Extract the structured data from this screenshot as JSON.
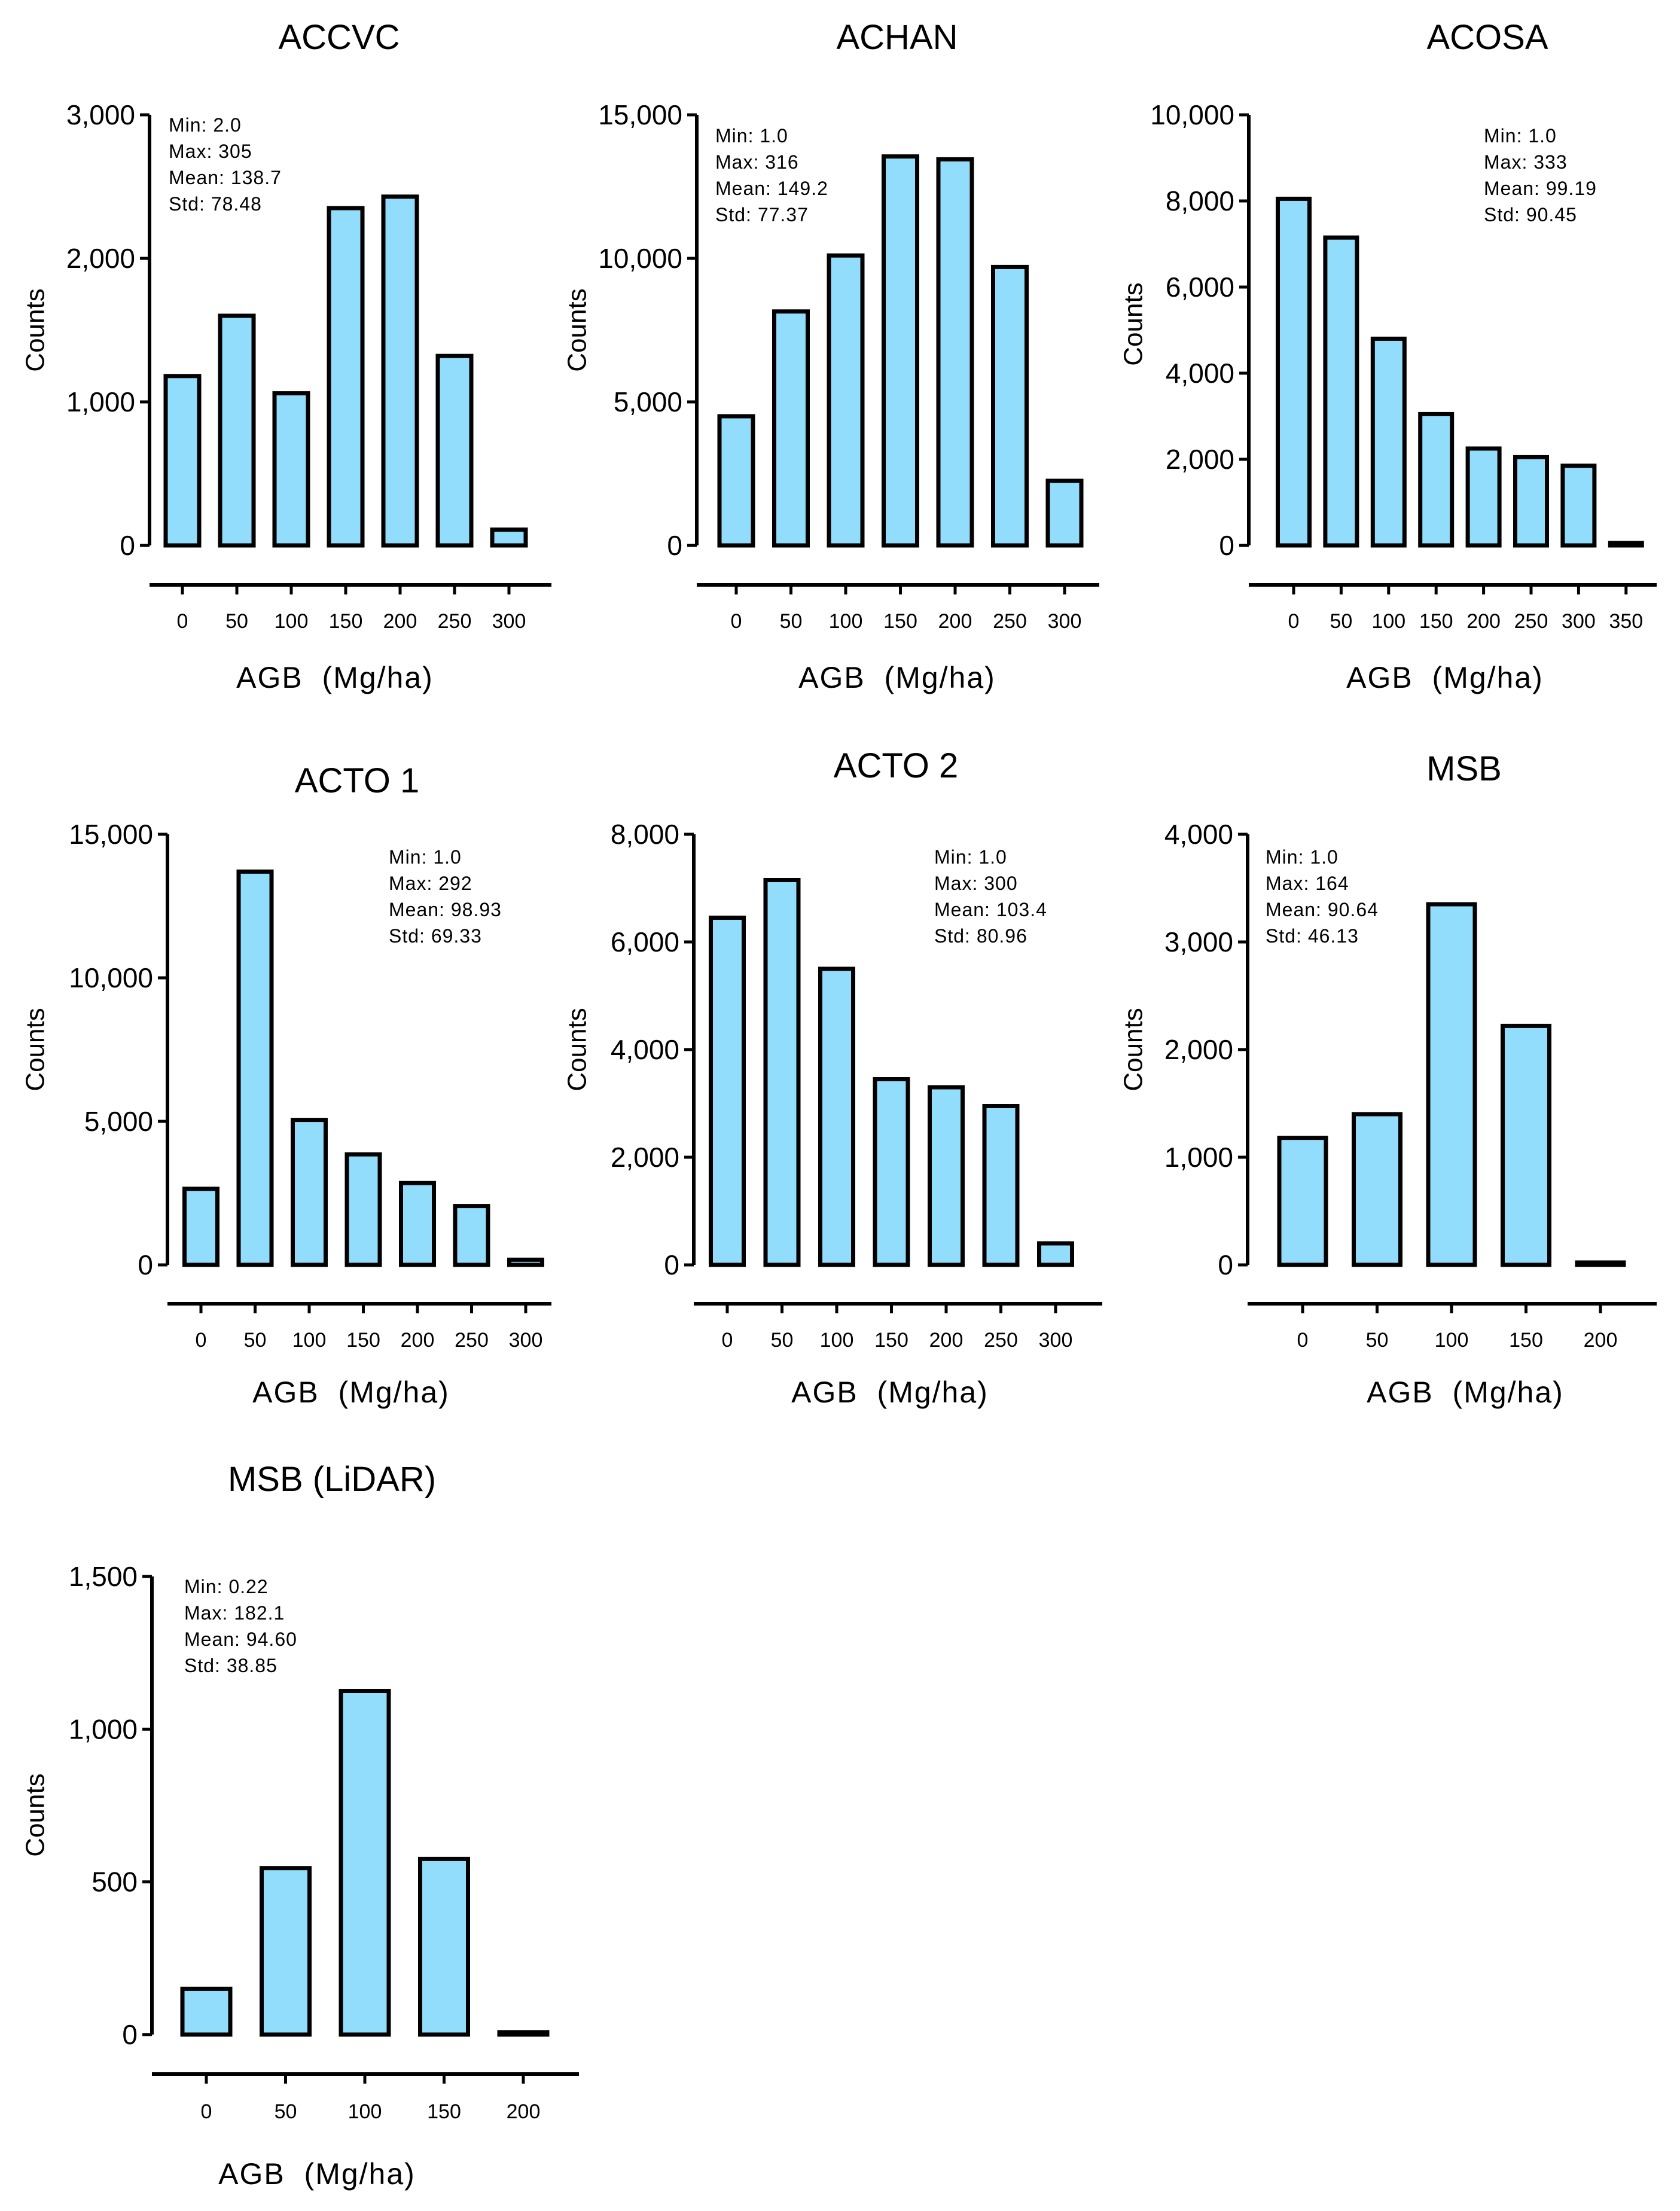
{
  "chart_data": [
    {
      "type": "bar",
      "title": "ACCVC",
      "xlabel": "AGB  (Mg/ha)",
      "ylabel": "Counts",
      "categories": [
        "0",
        "50",
        "100",
        "150",
        "200",
        "250",
        "300"
      ],
      "values": [
        1180,
        1600,
        1060,
        2350,
        2430,
        1320,
        110
      ],
      "ylim": [
        0,
        3000
      ],
      "yticks": [
        "0",
        "1,000",
        "2,000",
        "3,000"
      ],
      "stats": [
        "Min: 2.0",
        "Max: 305",
        "Mean: 138.7",
        "Std: 78.48"
      ],
      "stats_position": "top-left"
    },
    {
      "type": "bar",
      "title": "ACHAN",
      "xlabel": "AGB  (Mg/ha)",
      "ylabel": "Counts",
      "categories": [
        "0",
        "50",
        "100",
        "150",
        "200",
        "250",
        "300"
      ],
      "values": [
        4500,
        8150,
        10100,
        13550,
        13450,
        9700,
        2250
      ],
      "ylim": [
        0,
        15000
      ],
      "yticks": [
        "0",
        "5,000",
        "10,000",
        "15,000"
      ],
      "stats": [
        "Min: 1.0",
        "Max: 316",
        "Mean: 149.2",
        "Std: 77.37"
      ],
      "stats_position": "top-left"
    },
    {
      "type": "bar",
      "title": "ACOSA",
      "xlabel": "AGB  (Mg/ha)",
      "ylabel": "Counts",
      "categories": [
        "0",
        "50",
        "100",
        "150",
        "200",
        "250",
        "300",
        "350"
      ],
      "values": [
        8050,
        7150,
        4800,
        3050,
        2250,
        2050,
        1850,
        20
      ],
      "ylim": [
        0,
        10000
      ],
      "yticks": [
        "0",
        "2,000",
        "4,000",
        "6,000",
        "8,000",
        "10,000"
      ],
      "stats": [
        "Min: 1.0",
        "Max: 333",
        "Mean: 99.19",
        "Std: 90.45"
      ],
      "stats_position": "top-right"
    },
    {
      "type": "bar",
      "title": "ACTO 1",
      "xlabel": "AGB  (Mg/ha)",
      "ylabel": "Counts",
      "categories": [
        "0",
        "50",
        "100",
        "150",
        "200",
        "250",
        "300"
      ],
      "values": [
        2650,
        13700,
        5050,
        3850,
        2850,
        2050,
        180
      ],
      "ylim": [
        0,
        15000
      ],
      "yticks": [
        "0",
        "5,000",
        "10,000",
        "15,000"
      ],
      "stats": [
        "Min: 1.0",
        "Max: 292",
        "Mean: 98.93",
        "Std: 69.33"
      ],
      "stats_position": "top-right"
    },
    {
      "type": "bar",
      "title": "ACTO 2",
      "xlabel": "AGB  (Mg/ha)",
      "ylabel": "Counts",
      "categories": [
        "0",
        "50",
        "100",
        "150",
        "200",
        "250",
        "300"
      ],
      "values": [
        6450,
        7150,
        5500,
        3450,
        3300,
        2950,
        400
      ],
      "ylim": [
        0,
        8000
      ],
      "yticks": [
        "0",
        "2,000",
        "4,000",
        "6,000",
        "8,000"
      ],
      "stats": [
        "Min: 1.0",
        "Max: 300",
        "Mean: 103.4",
        "Std: 80.96"
      ],
      "stats_position": "top-right"
    },
    {
      "type": "bar",
      "title": "MSB",
      "xlabel": "AGB  (Mg/ha)",
      "ylabel": "Counts",
      "categories": [
        "0",
        "50",
        "100",
        "150",
        "200"
      ],
      "values": [
        1180,
        1400,
        3350,
        2220,
        0
      ],
      "ylim": [
        0,
        4000
      ],
      "yticks": [
        "0",
        "1,000",
        "2,000",
        "3,000",
        "4,000"
      ],
      "stats": [
        "Min: 1.0",
        "Max: 164",
        "Mean: 90.64",
        "Std: 46.13"
      ],
      "stats_position": "top-left"
    },
    {
      "type": "bar",
      "title": "MSB (LiDAR)",
      "xlabel": "AGB  (Mg/ha)",
      "ylabel": "Counts",
      "categories": [
        "0",
        "50",
        "100",
        "150",
        "200"
      ],
      "values": [
        150,
        545,
        1125,
        575,
        4
      ],
      "ylim": [
        0,
        1500
      ],
      "yticks": [
        "0",
        "500",
        "1,000",
        "1,500"
      ],
      "stats": [
        "Min: 0.22",
        "Max: 182.1",
        "Mean: 94.60",
        "Std: 38.85"
      ],
      "stats_position": "top-left"
    }
  ]
}
